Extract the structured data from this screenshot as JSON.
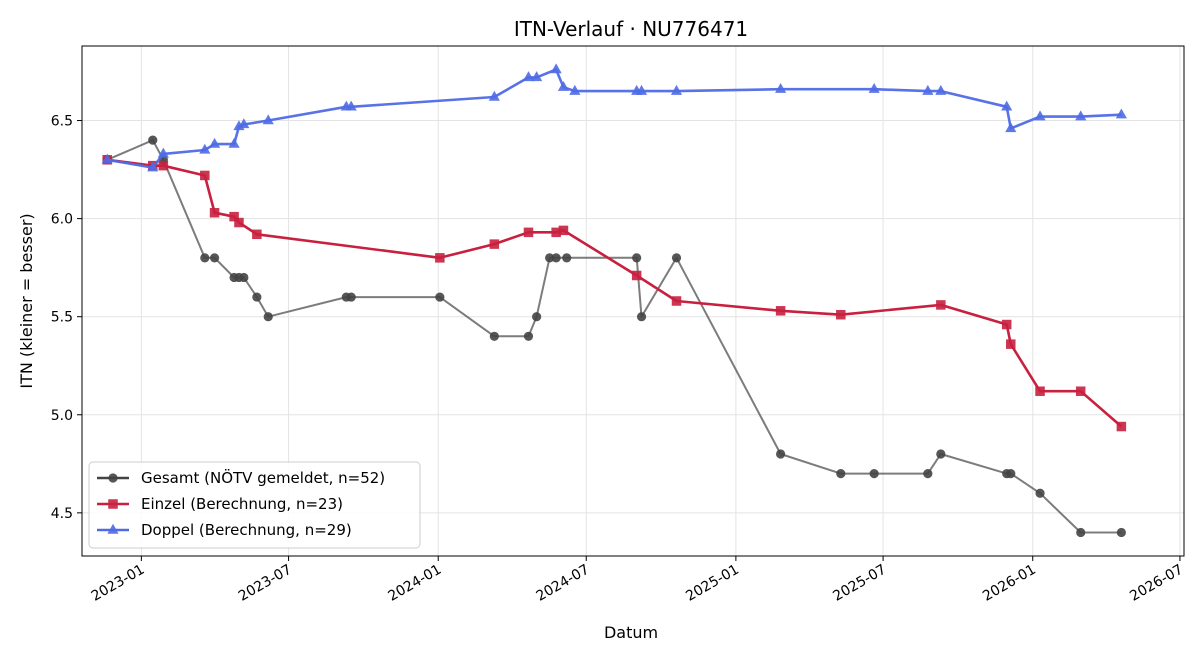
{
  "chart_data": {
    "type": "line",
    "title": "ITN-Verlauf · NU776471",
    "xlabel": "Datum",
    "ylabel": "ITN  (kleiner = besser)",
    "xlim": [
      "2022-10-20",
      "2026-07-06"
    ],
    "ylim": [
      4.28,
      6.88
    ],
    "grid": true,
    "legend_position": "lower-left",
    "x_ticks": [
      "2023-01-01",
      "2023-07-01",
      "2024-01-01",
      "2024-07-01",
      "2025-01-01",
      "2025-07-01",
      "2026-01-01",
      "2026-07-01"
    ],
    "x_tick_labels": [
      "2023-01",
      "2023-07",
      "2024-01",
      "2024-07",
      "2025-01",
      "2025-07",
      "2026-01",
      "2026-07"
    ],
    "y_ticks": [
      4.5,
      5.0,
      5.5,
      6.0,
      6.5
    ],
    "y_tick_labels": [
      "4.5",
      "5.0",
      "5.5",
      "6.0",
      "6.5"
    ],
    "series": [
      {
        "name": "Gesamt (NÖTV gemeldet, n=52)",
        "color": "#444444",
        "marker": "circle",
        "points": [
          [
            "2022-11-20",
            6.3
          ],
          [
            "2023-01-15",
            6.4
          ],
          [
            "2023-01-28",
            6.3
          ],
          [
            "2023-03-20",
            5.8
          ],
          [
            "2023-04-01",
            5.8
          ],
          [
            "2023-04-25",
            5.7
          ],
          [
            "2023-05-01",
            5.7
          ],
          [
            "2023-05-07",
            5.7
          ],
          [
            "2023-05-23",
            5.6
          ],
          [
            "2023-06-06",
            5.5
          ],
          [
            "2023-09-10",
            5.6
          ],
          [
            "2023-09-16",
            5.6
          ],
          [
            "2024-01-03",
            5.6
          ],
          [
            "2024-03-10",
            5.4
          ],
          [
            "2024-04-21",
            5.4
          ],
          [
            "2024-05-01",
            5.5
          ],
          [
            "2024-05-17",
            5.8
          ],
          [
            "2024-05-25",
            5.8
          ],
          [
            "2024-06-07",
            5.8
          ],
          [
            "2024-09-01",
            5.8
          ],
          [
            "2024-09-07",
            5.5
          ],
          [
            "2024-10-20",
            5.8
          ],
          [
            "2025-02-25",
            4.8
          ],
          [
            "2025-05-10",
            4.7
          ],
          [
            "2025-06-20",
            4.7
          ],
          [
            "2025-08-25",
            4.7
          ],
          [
            "2025-09-10",
            4.8
          ],
          [
            "2025-11-30",
            4.7
          ],
          [
            "2025-12-05",
            4.7
          ],
          [
            "2026-01-10",
            4.6
          ],
          [
            "2026-03-01",
            4.4
          ],
          [
            "2026-04-20",
            4.4
          ]
        ]
      },
      {
        "name": "Einzel (Berechnung, n=23)",
        "color": "#c8203f",
        "marker": "square",
        "points": [
          [
            "2022-11-20",
            6.3
          ],
          [
            "2023-01-15",
            6.27
          ],
          [
            "2023-01-28",
            6.27
          ],
          [
            "2023-03-20",
            6.22
          ],
          [
            "2023-04-01",
            6.03
          ],
          [
            "2023-04-25",
            6.01
          ],
          [
            "2023-05-01",
            5.98
          ],
          [
            "2023-05-23",
            5.92
          ],
          [
            "2024-01-03",
            5.8
          ],
          [
            "2024-03-10",
            5.87
          ],
          [
            "2024-04-21",
            5.93
          ],
          [
            "2024-05-25",
            5.93
          ],
          [
            "2024-06-03",
            5.94
          ],
          [
            "2024-09-01",
            5.71
          ],
          [
            "2024-10-20",
            5.58
          ],
          [
            "2025-02-25",
            5.53
          ],
          [
            "2025-05-10",
            5.51
          ],
          [
            "2025-09-10",
            5.56
          ],
          [
            "2025-11-30",
            5.46
          ],
          [
            "2025-12-05",
            5.36
          ],
          [
            "2026-01-10",
            5.12
          ],
          [
            "2026-03-01",
            5.12
          ],
          [
            "2026-04-20",
            4.94
          ]
        ]
      },
      {
        "name": "Doppel (Berechnung, n=29)",
        "color": "#4f6ae6",
        "marker": "triangle",
        "points": [
          [
            "2022-11-20",
            6.3
          ],
          [
            "2023-01-15",
            6.26
          ],
          [
            "2023-01-28",
            6.33
          ],
          [
            "2023-03-20",
            6.35
          ],
          [
            "2023-04-01",
            6.38
          ],
          [
            "2023-04-25",
            6.38
          ],
          [
            "2023-05-01",
            6.47
          ],
          [
            "2023-05-07",
            6.48
          ],
          [
            "2023-06-06",
            6.5
          ],
          [
            "2023-09-10",
            6.57
          ],
          [
            "2023-09-16",
            6.57
          ],
          [
            "2024-03-10",
            6.62
          ],
          [
            "2024-04-21",
            6.72
          ],
          [
            "2024-05-01",
            6.72
          ],
          [
            "2024-05-25",
            6.76
          ],
          [
            "2024-06-03",
            6.67
          ],
          [
            "2024-06-17",
            6.65
          ],
          [
            "2024-09-01",
            6.65
          ],
          [
            "2024-09-07",
            6.65
          ],
          [
            "2024-10-20",
            6.65
          ],
          [
            "2025-02-25",
            6.66
          ],
          [
            "2025-06-20",
            6.66
          ],
          [
            "2025-08-25",
            6.65
          ],
          [
            "2025-09-10",
            6.65
          ],
          [
            "2025-11-30",
            6.57
          ],
          [
            "2025-12-05",
            6.46
          ],
          [
            "2026-01-10",
            6.52
          ],
          [
            "2026-03-01",
            6.52
          ],
          [
            "2026-04-20",
            6.53
          ]
        ]
      }
    ]
  }
}
